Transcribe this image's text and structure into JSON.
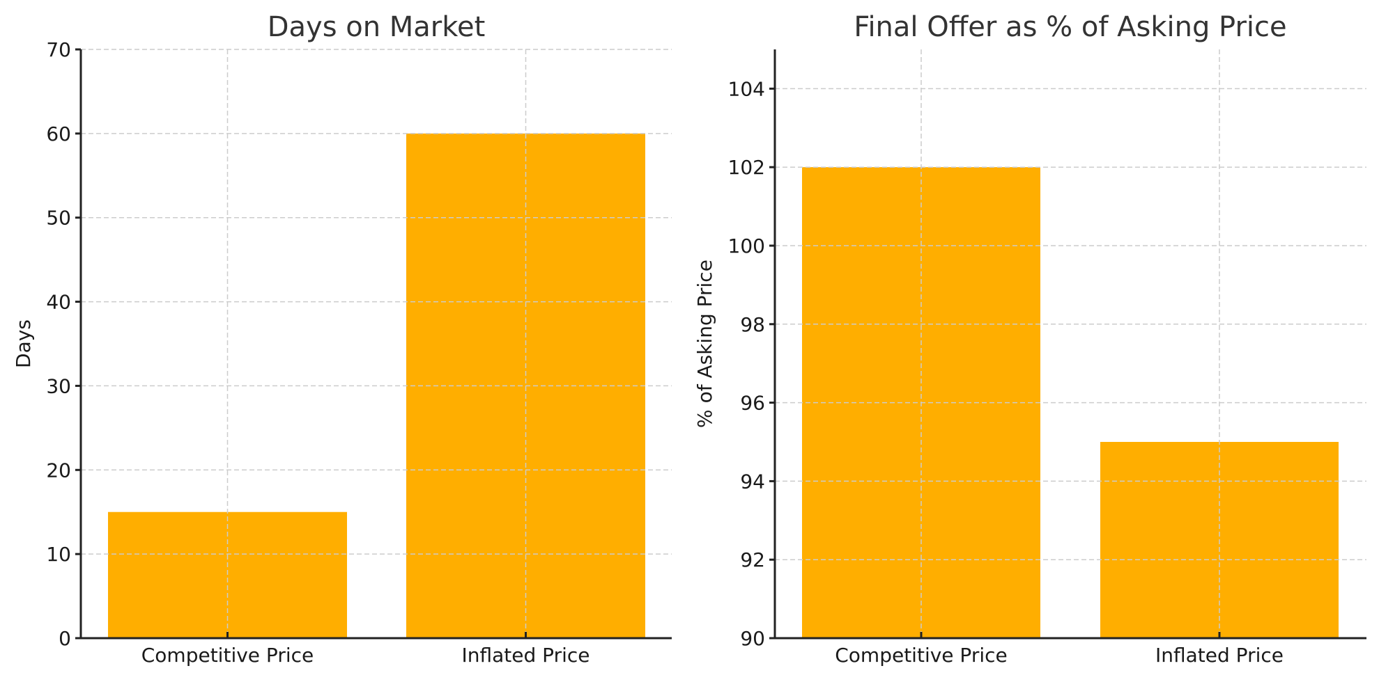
{
  "colors": {
    "bar": "#FFAE00",
    "grid": "#cccccc",
    "axis": "#222222",
    "title": "#333333"
  },
  "chart_data": [
    {
      "type": "bar",
      "title": "Days on Market",
      "xlabel": "",
      "ylabel": "Days",
      "categories": [
        "Competitive Price",
        "Inflated Price"
      ],
      "values": [
        15,
        60
      ],
      "ylim": [
        0,
        70
      ],
      "yticks": [
        0,
        10,
        20,
        30,
        40,
        50,
        60,
        70
      ],
      "grid": true,
      "legend": null
    },
    {
      "type": "bar",
      "title": "Final Offer as % of Asking Price",
      "xlabel": "",
      "ylabel": "% of Asking Price",
      "categories": [
        "Competitive Price",
        "Inflated Price"
      ],
      "values": [
        102,
        95
      ],
      "ylim": [
        90,
        105
      ],
      "yticks": [
        90,
        92,
        94,
        96,
        98,
        100,
        102,
        104
      ],
      "grid": true,
      "legend": null
    }
  ]
}
